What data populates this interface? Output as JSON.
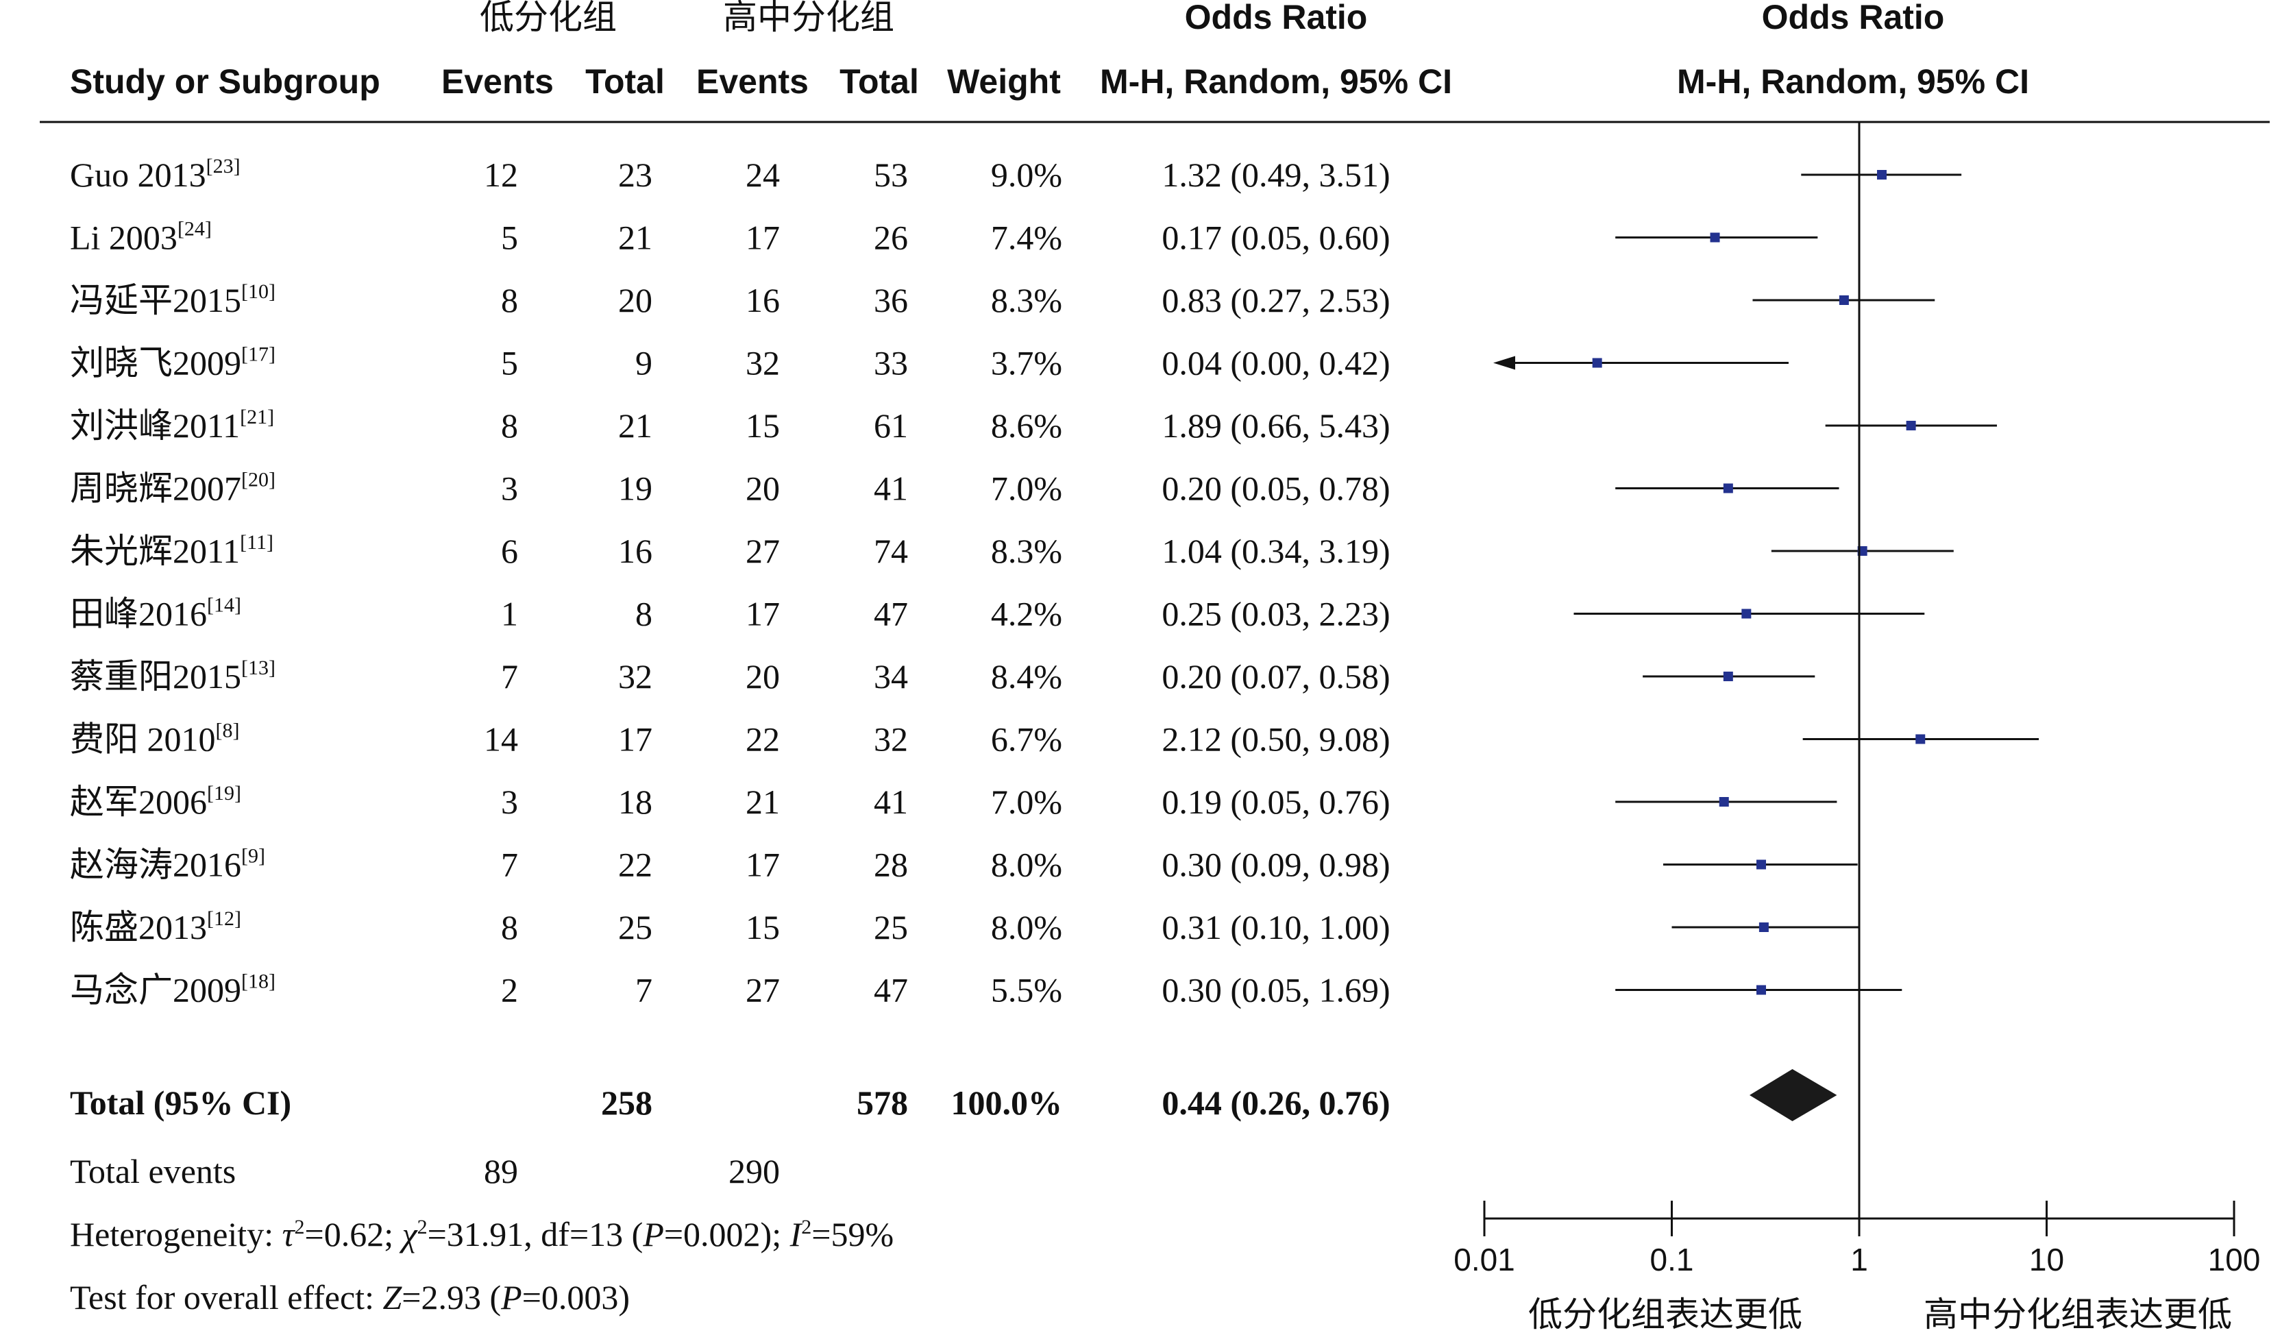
{
  "headers": {
    "group1": "低分化组",
    "group2": "高中分化组",
    "or_top_left": "Odds Ratio",
    "or_top_right": "Odds Ratio",
    "study": "Study or Subgroup",
    "events1": "Events",
    "total1": "Total",
    "events2": "Events",
    "total2": "Total",
    "weight": "Weight",
    "method_left": "M-H, Random, 95% CI",
    "method_right": "M-H, Random, 95% CI"
  },
  "summary": {
    "total_label": "Total (95% CI)",
    "total1": "258",
    "total2": "578",
    "weight": "100.0%",
    "or_text": "0.44 (0.26, 0.76)",
    "events_label": "Total events",
    "events1": "89",
    "events2": "290",
    "heterogeneity": {
      "prefix": "Heterogeneity: ",
      "tau": "τ",
      "tau_val": "=0.62; ",
      "chi": "χ",
      "chi_val": "=31.91, df=13 (",
      "p": "P",
      "p_val": "=0.002); ",
      "i": "I",
      "i_val": "=59%",
      "sup2": "2"
    },
    "overall": {
      "prefix": "Test for overall effect: ",
      "z": "Z",
      "z_val": "=2.93 (",
      "p": "P",
      "p_val": "=0.003)"
    }
  },
  "axis": {
    "ticks": [
      "0.01",
      "0.1",
      "1",
      "10",
      "100"
    ],
    "favours_left": "低分化组表达更低",
    "favours_right": "高中分化组表达更低"
  },
  "chart_data": {
    "type": "forest",
    "scale": "log",
    "xlim": [
      0.01,
      100
    ],
    "studies": [
      {
        "name": "Guo 2013",
        "ref": "[23]",
        "events1": 12,
        "total1": 23,
        "events2": 24,
        "total2": 53,
        "weight": "9.0%",
        "or": 1.32,
        "lo": 0.49,
        "hi": 3.51,
        "ci_text": "1.32 (0.49, 3.51)"
      },
      {
        "name": "Li 2003",
        "ref": "[24]",
        "events1": 5,
        "total1": 21,
        "events2": 17,
        "total2": 26,
        "weight": "7.4%",
        "or": 0.17,
        "lo": 0.05,
        "hi": 0.6,
        "ci_text": "0.17 (0.05, 0.60)"
      },
      {
        "name": "冯延平2015",
        "ref": "[10]",
        "events1": 8,
        "total1": 20,
        "events2": 16,
        "total2": 36,
        "weight": "8.3%",
        "or": 0.83,
        "lo": 0.27,
        "hi": 2.53,
        "ci_text": "0.83 (0.27, 2.53)"
      },
      {
        "name": "刘晓飞2009",
        "ref": "[17]",
        "events1": 5,
        "total1": 9,
        "events2": 32,
        "total2": 33,
        "weight": "3.7%",
        "or": 0.04,
        "lo": 0.0,
        "hi": 0.42,
        "ci_text": "0.04 (0.00, 0.42)"
      },
      {
        "name": "刘洪峰2011",
        "ref": "[21]",
        "events1": 8,
        "total1": 21,
        "events2": 15,
        "total2": 61,
        "weight": "8.6%",
        "or": 1.89,
        "lo": 0.66,
        "hi": 5.43,
        "ci_text": "1.89 (0.66, 5.43)"
      },
      {
        "name": "周晓辉2007",
        "ref": "[20]",
        "events1": 3,
        "total1": 19,
        "events2": 20,
        "total2": 41,
        "weight": "7.0%",
        "or": 0.2,
        "lo": 0.05,
        "hi": 0.78,
        "ci_text": "0.20 (0.05, 0.78)"
      },
      {
        "name": "朱光辉2011",
        "ref": "[11]",
        "events1": 6,
        "total1": 16,
        "events2": 27,
        "total2": 74,
        "weight": "8.3%",
        "or": 1.04,
        "lo": 0.34,
        "hi": 3.19,
        "ci_text": "1.04 (0.34, 3.19)"
      },
      {
        "name": "田峰2016",
        "ref": "[14]",
        "events1": 1,
        "total1": 8,
        "events2": 17,
        "total2": 47,
        "weight": "4.2%",
        "or": 0.25,
        "lo": 0.03,
        "hi": 2.23,
        "ci_text": "0.25 (0.03, 2.23)"
      },
      {
        "name": "蔡重阳2015",
        "ref": "[13]",
        "events1": 7,
        "total1": 32,
        "events2": 20,
        "total2": 34,
        "weight": "8.4%",
        "or": 0.2,
        "lo": 0.07,
        "hi": 0.58,
        "ci_text": "0.20 (0.07, 0.58)"
      },
      {
        "name": "费阳 2010",
        "ref": "[8]",
        "events1": 14,
        "total1": 17,
        "events2": 22,
        "total2": 32,
        "weight": "6.7%",
        "or": 2.12,
        "lo": 0.5,
        "hi": 9.08,
        "ci_text": "2.12 (0.50, 9.08)"
      },
      {
        "name": "赵军2006",
        "ref": "[19]",
        "events1": 3,
        "total1": 18,
        "events2": 21,
        "total2": 41,
        "weight": "7.0%",
        "or": 0.19,
        "lo": 0.05,
        "hi": 0.76,
        "ci_text": "0.19 (0.05, 0.76)"
      },
      {
        "name": "赵海涛2016",
        "ref": "[9]",
        "events1": 7,
        "total1": 22,
        "events2": 17,
        "total2": 28,
        "weight": "8.0%",
        "or": 0.3,
        "lo": 0.09,
        "hi": 0.98,
        "ci_text": "0.30 (0.09, 0.98)"
      },
      {
        "name": "陈盛2013",
        "ref": "[12]",
        "events1": 8,
        "total1": 25,
        "events2": 15,
        "total2": 25,
        "weight": "8.0%",
        "or": 0.31,
        "lo": 0.1,
        "hi": 1.0,
        "ci_text": "0.31 (0.10, 1.00)"
      },
      {
        "name": "马念广2009",
        "ref": "[18]",
        "events1": 2,
        "total1": 7,
        "events2": 27,
        "total2": 47,
        "weight": "5.5%",
        "or": 0.3,
        "lo": 0.05,
        "hi": 1.69,
        "ci_text": "0.30 (0.05, 1.69)"
      }
    ],
    "pooled": {
      "or": 0.44,
      "lo": 0.26,
      "hi": 0.76
    },
    "colors": {
      "marker": "#23328f",
      "diamond": "#1a1a1a",
      "line": "#111111"
    }
  }
}
